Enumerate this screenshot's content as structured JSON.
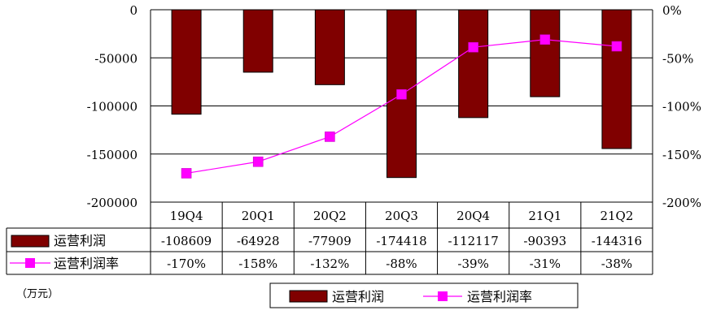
{
  "chart_data": {
    "type": "bar",
    "categories": [
      "19Q4",
      "20Q1",
      "20Q2",
      "20Q3",
      "20Q4",
      "21Q1",
      "21Q2"
    ],
    "series": [
      {
        "name": "运营利润",
        "kind": "bar",
        "axis": "left",
        "values": [
          -108609,
          -64928,
          -77909,
          -174418,
          -112117,
          -90393,
          -144316
        ],
        "labels": [
          "-108609",
          "-64928",
          "-77909",
          "-174418",
          "-112117",
          "-90393",
          "-144316"
        ],
        "color": "#800000"
      },
      {
        "name": "运营利润率",
        "kind": "line",
        "axis": "right",
        "values": [
          -170,
          -158,
          -132,
          -88,
          -39,
          -31,
          -38
        ],
        "labels": [
          "-170%",
          "-158%",
          "-132%",
          "-88%",
          "-39%",
          "-31%",
          "-38%"
        ],
        "color": "#ff00ff"
      }
    ],
    "y_left": {
      "min": -200000,
      "max": 0,
      "ticks": [
        "0",
        "-50000",
        "-100000",
        "-150000",
        "-200000"
      ]
    },
    "y_right": {
      "min": -200,
      "max": 0,
      "ticks": [
        "0%",
        "-50%",
        "-100%",
        "-150%",
        "-200%"
      ]
    },
    "unit_note": "（万元）",
    "grid": true,
    "legend_position": "bottom"
  }
}
